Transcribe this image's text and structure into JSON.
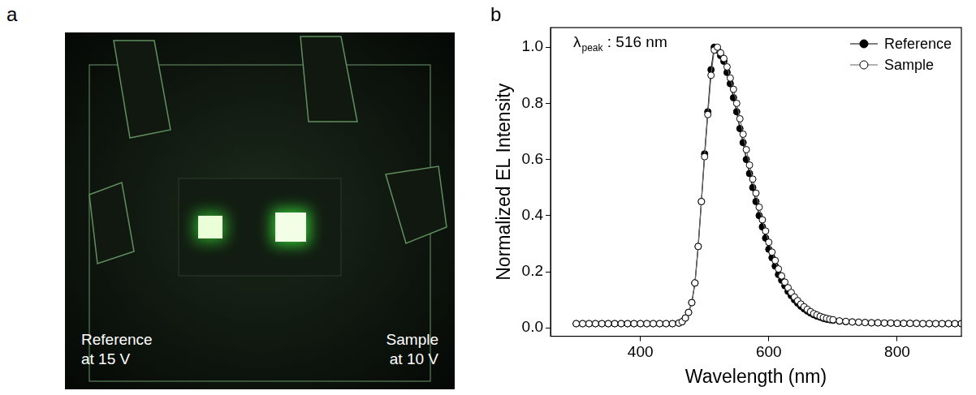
{
  "photo": {
    "panel": "a",
    "labels": [
      {
        "lines": [
          "Reference",
          "at 15 V"
        ]
      },
      {
        "lines": [
          "Sample",
          "at 10 V"
        ]
      }
    ]
  },
  "chart_data": {
    "panel": "b",
    "type": "line",
    "x_label": "Wavelength (nm)",
    "y_label": "Normalized EL Intensity",
    "annotation": {
      "symbol": "λ",
      "subscript": "peak",
      "text": " : 516 nm"
    },
    "x": [
      300,
      310,
      320,
      330,
      340,
      350,
      360,
      370,
      380,
      390,
      400,
      410,
      420,
      430,
      440,
      450,
      460,
      465,
      470,
      475,
      480,
      485,
      490,
      495,
      500,
      505,
      510,
      515,
      520,
      525,
      530,
      535,
      540,
      545,
      550,
      555,
      560,
      565,
      570,
      575,
      580,
      585,
      590,
      595,
      600,
      605,
      610,
      615,
      620,
      625,
      630,
      635,
      640,
      645,
      650,
      655,
      660,
      665,
      670,
      675,
      680,
      685,
      690,
      695,
      700,
      710,
      720,
      730,
      740,
      750,
      760,
      770,
      780,
      790,
      800,
      810,
      820,
      830,
      840,
      850,
      860,
      870,
      880,
      890,
      900
    ],
    "series": [
      {
        "name": "Reference",
        "color": "#000000",
        "marker": "circle",
        "line_style": "solid",
        "values": [
          0.015,
          0.015,
          0.015,
          0.015,
          0.015,
          0.015,
          0.015,
          0.015,
          0.015,
          0.015,
          0.015,
          0.015,
          0.015,
          0.015,
          0.015,
          0.015,
          0.017,
          0.022,
          0.035,
          0.055,
          0.09,
          0.16,
          0.29,
          0.45,
          0.62,
          0.77,
          0.92,
          1.0,
          0.99,
          0.97,
          0.95,
          0.91,
          0.87,
          0.82,
          0.77,
          0.71,
          0.66,
          0.6,
          0.55,
          0.5,
          0.45,
          0.4,
          0.36,
          0.32,
          0.28,
          0.25,
          0.22,
          0.19,
          0.17,
          0.15,
          0.13,
          0.115,
          0.1,
          0.088,
          0.077,
          0.068,
          0.06,
          0.053,
          0.047,
          0.042,
          0.038,
          0.034,
          0.031,
          0.029,
          0.027,
          0.024,
          0.022,
          0.021,
          0.02,
          0.019,
          0.018,
          0.018,
          0.017,
          0.017,
          0.016,
          0.016,
          0.016,
          0.016,
          0.015,
          0.015,
          0.015,
          0.015,
          0.015,
          0.015,
          0.015
        ]
      },
      {
        "name": "Sample",
        "color": "#666666",
        "marker": "open_circle",
        "line_style": "solid",
        "values": [
          0.015,
          0.015,
          0.015,
          0.015,
          0.015,
          0.015,
          0.015,
          0.015,
          0.015,
          0.015,
          0.015,
          0.015,
          0.015,
          0.015,
          0.015,
          0.015,
          0.017,
          0.022,
          0.035,
          0.055,
          0.09,
          0.16,
          0.29,
          0.45,
          0.61,
          0.76,
          0.9,
          0.99,
          1.0,
          0.98,
          0.96,
          0.93,
          0.89,
          0.85,
          0.8,
          0.745,
          0.69,
          0.635,
          0.58,
          0.53,
          0.48,
          0.43,
          0.385,
          0.345,
          0.305,
          0.27,
          0.24,
          0.21,
          0.185,
          0.163,
          0.143,
          0.126,
          0.11,
          0.097,
          0.085,
          0.075,
          0.066,
          0.058,
          0.051,
          0.046,
          0.041,
          0.037,
          0.034,
          0.031,
          0.029,
          0.025,
          0.023,
          0.021,
          0.02,
          0.019,
          0.018,
          0.018,
          0.017,
          0.017,
          0.016,
          0.016,
          0.016,
          0.016,
          0.015,
          0.015,
          0.015,
          0.015,
          0.015,
          0.015,
          0.015
        ]
      }
    ],
    "xlim": [
      260,
      900
    ],
    "xticks": [
      400,
      600,
      800
    ],
    "ylim": [
      -0.03,
      1.07
    ],
    "yticks": [
      {
        "value": 0,
        "label": "0.0"
      },
      0.2,
      0.4,
      0.6,
      0.8,
      {
        "value": 1,
        "label": "1.0"
      }
    ],
    "grid": false,
    "legend": "upper right"
  }
}
